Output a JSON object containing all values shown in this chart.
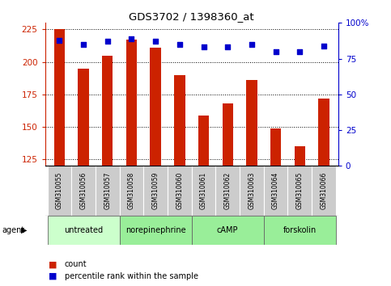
{
  "title": "GDS3702 / 1398360_at",
  "samples": [
    "GSM310055",
    "GSM310056",
    "GSM310057",
    "GSM310058",
    "GSM310059",
    "GSM310060",
    "GSM310061",
    "GSM310062",
    "GSM310063",
    "GSM310064",
    "GSM310065",
    "GSM310066"
  ],
  "counts": [
    225,
    195,
    205,
    217,
    211,
    190,
    159,
    168,
    186,
    149,
    135,
    172
  ],
  "percentiles": [
    88,
    85,
    87,
    89,
    87,
    85,
    83,
    83,
    85,
    80,
    80,
    84
  ],
  "agent_groups": [
    {
      "label": "untreated",
      "start": 0,
      "end": 3,
      "color": "#ccffcc"
    },
    {
      "label": "norepinephrine",
      "start": 3,
      "end": 6,
      "color": "#99ee99"
    },
    {
      "label": "cAMP",
      "start": 6,
      "end": 9,
      "color": "#99ee99"
    },
    {
      "label": "forskolin",
      "start": 9,
      "end": 12,
      "color": "#99ee99"
    }
  ],
  "ylim_left": [
    120,
    230
  ],
  "ylim_right": [
    0,
    100
  ],
  "yticks_left": [
    125,
    150,
    175,
    200,
    225
  ],
  "yticks_right": [
    0,
    25,
    50,
    75,
    100
  ],
  "bar_color": "#cc2200",
  "dot_color": "#0000cc",
  "bar_width": 0.45,
  "left_axis_color": "#cc2200",
  "right_axis_color": "#0000cc",
  "legend_count_label": "count",
  "legend_pct_label": "percentile rank within the sample",
  "agent_label": "agent",
  "sample_bg_color": "#cccccc",
  "fig_width": 4.83,
  "fig_height": 3.54,
  "dpi": 100
}
